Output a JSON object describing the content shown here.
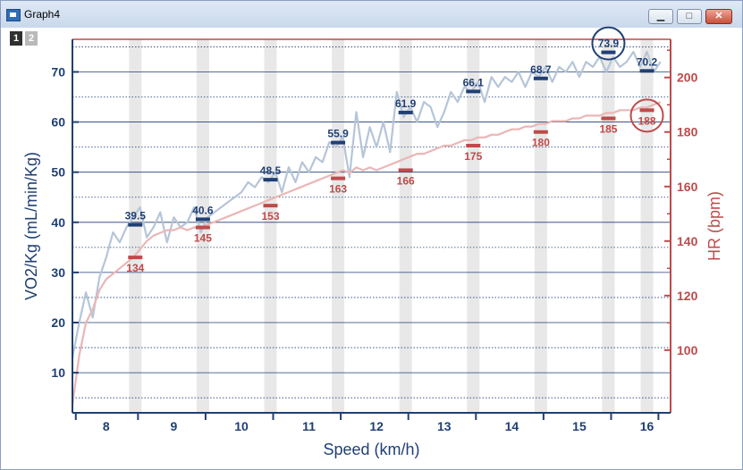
{
  "window": {
    "title": "Graph4",
    "minimize_icon": "minimize-icon",
    "maximize_icon": "maximize-icon",
    "close_icon": "close-icon"
  },
  "layers": [
    "1",
    "2"
  ],
  "colors": {
    "vo2": "#1f3f74",
    "vo2_trace": "#b6c5d8",
    "hr": "#bf4a4a",
    "hr_trace": "#ebb6b6",
    "band": "#e8e8e8",
    "grid": "#1f3f74"
  },
  "chart_data": {
    "type": "line",
    "xlabel": "Speed (km/h)",
    "ylabel": "VO2/Kg (mL/min/Kg)",
    "y2label": "HR (bpm)",
    "xlim": [
      7.5,
      16.35
    ],
    "ylim": [
      2,
      76.5
    ],
    "y2lim": [
      77,
      214
    ],
    "xticks": [
      8,
      9,
      10,
      11,
      12,
      13,
      14,
      15,
      16
    ],
    "yticks": [
      10,
      20,
      30,
      40,
      50,
      60,
      70
    ],
    "y2ticks": [
      100,
      120,
      140,
      160,
      180,
      200
    ],
    "grid": true,
    "stage_bands": [
      8.43,
      9.43,
      10.43,
      11.43,
      12.43,
      13.43,
      14.43,
      15.43,
      16.0
    ],
    "series": [
      {
        "name": "VO2",
        "axis": "left",
        "x": [
          7.5,
          7.6,
          7.7,
          7.8,
          7.9,
          8.0,
          8.1,
          8.2,
          8.3,
          8.4,
          8.5,
          8.6,
          8.7,
          8.8,
          8.9,
          9.0,
          9.1,
          9.2,
          9.3,
          9.4,
          9.5,
          9.6,
          9.7,
          9.8,
          9.9,
          10.0,
          10.1,
          10.2,
          10.3,
          10.4,
          10.5,
          10.6,
          10.7,
          10.8,
          10.9,
          11.0,
          11.1,
          11.2,
          11.3,
          11.4,
          11.5,
          11.6,
          11.7,
          11.8,
          11.9,
          12.0,
          12.1,
          12.2,
          12.3,
          12.4,
          12.5,
          12.6,
          12.7,
          12.8,
          12.9,
          13.0,
          13.1,
          13.2,
          13.3,
          13.4,
          13.5,
          13.6,
          13.7,
          13.8,
          13.9,
          14.0,
          14.1,
          14.2,
          14.3,
          14.4,
          14.5,
          14.6,
          14.7,
          14.8,
          14.9,
          15.0,
          15.1,
          15.2,
          15.3,
          15.4,
          15.5,
          15.6,
          15.7,
          15.8,
          15.9,
          16.0,
          16.1,
          16.2
        ],
        "y": [
          13,
          20,
          26,
          21,
          29,
          33,
          38,
          36,
          39,
          41,
          43,
          37,
          39,
          42,
          36,
          41,
          39,
          40,
          43,
          38,
          41,
          42,
          43,
          44,
          45,
          46,
          48,
          47,
          49,
          48,
          50,
          46,
          51,
          48,
          52,
          50,
          53,
          52,
          56,
          55,
          57,
          49,
          62,
          53,
          59,
          55,
          60,
          54,
          66,
          61,
          63,
          60,
          64,
          63,
          59,
          62,
          66,
          64,
          67,
          66,
          68,
          64,
          69,
          67,
          69,
          68,
          70,
          67,
          70,
          69,
          71,
          68,
          71,
          70,
          72,
          69,
          72,
          71,
          73,
          70,
          73,
          71,
          72,
          74,
          71,
          74,
          70,
          72
        ]
      },
      {
        "name": "HR",
        "axis": "right",
        "x": [
          7.5,
          7.6,
          7.7,
          7.8,
          7.9,
          8.0,
          8.1,
          8.2,
          8.3,
          8.4,
          8.5,
          8.6,
          8.7,
          8.8,
          8.9,
          9.0,
          9.1,
          9.2,
          9.3,
          9.4,
          9.5,
          9.6,
          9.7,
          9.8,
          9.9,
          10.0,
          10.1,
          10.2,
          10.3,
          10.4,
          10.5,
          10.6,
          10.7,
          10.8,
          10.9,
          11.0,
          11.1,
          11.2,
          11.3,
          11.4,
          11.5,
          11.6,
          11.7,
          11.8,
          11.9,
          12.0,
          12.1,
          12.2,
          12.3,
          12.4,
          12.5,
          12.6,
          12.7,
          12.8,
          12.9,
          13.0,
          13.1,
          13.2,
          13.3,
          13.4,
          13.5,
          13.6,
          13.7,
          13.8,
          13.9,
          14.0,
          14.1,
          14.2,
          14.3,
          14.4,
          14.5,
          14.6,
          14.7,
          14.8,
          14.9,
          15.0,
          15.1,
          15.2,
          15.3,
          15.4,
          15.5,
          15.6,
          15.7,
          15.8,
          15.9,
          16.0,
          16.1,
          16.2
        ],
        "y": [
          80,
          98,
          110,
          115,
          122,
          126,
          128,
          130,
          132,
          134,
          137,
          140,
          142,
          143,
          144,
          144,
          145,
          144,
          145,
          145,
          146,
          147,
          148,
          149,
          150,
          151,
          152,
          153,
          154,
          155,
          156,
          157,
          158,
          159,
          160,
          161,
          162,
          163,
          164,
          165,
          166,
          165,
          167,
          166,
          167,
          166,
          167,
          168,
          169,
          170,
          171,
          172,
          172,
          173,
          174,
          175,
          175,
          176,
          177,
          177,
          178,
          178,
          179,
          179,
          180,
          181,
          181,
          182,
          182,
          183,
          183,
          184,
          184,
          184,
          185,
          185,
          186,
          186,
          186,
          187,
          187,
          188,
          188,
          188,
          189,
          189,
          190,
          191
        ]
      }
    ],
    "stage_markers": {
      "vo2": [
        {
          "x": 8.43,
          "value": "39.5",
          "y": 39.5
        },
        {
          "x": 9.43,
          "value": "40.6",
          "y": 40.6
        },
        {
          "x": 10.43,
          "value": "48.5",
          "y": 48.5
        },
        {
          "x": 11.43,
          "value": "55.9",
          "y": 55.9
        },
        {
          "x": 12.43,
          "value": "61.9",
          "y": 61.9
        },
        {
          "x": 13.43,
          "value": "66.1",
          "y": 66.1
        },
        {
          "x": 14.43,
          "value": "68.7",
          "y": 68.7
        },
        {
          "x": 15.43,
          "value": "73.9",
          "y": 73.9
        },
        {
          "x": 16.0,
          "value": "70.2",
          "y": 70.2
        }
      ],
      "hr": [
        {
          "x": 8.43,
          "value": "134",
          "y": 134
        },
        {
          "x": 9.43,
          "value": "145",
          "y": 145
        },
        {
          "x": 10.43,
          "value": "153",
          "y": 153
        },
        {
          "x": 11.43,
          "value": "163",
          "y": 163
        },
        {
          "x": 12.43,
          "value": "166",
          "y": 166
        },
        {
          "x": 13.43,
          "value": "175",
          "y": 175
        },
        {
          "x": 14.43,
          "value": "180",
          "y": 180
        },
        {
          "x": 15.43,
          "value": "185",
          "y": 185
        },
        {
          "x": 16.0,
          "value": "188",
          "y": 188
        }
      ]
    },
    "highlight": {
      "vo2_max_index": 7,
      "hr_max_index": 8
    }
  }
}
